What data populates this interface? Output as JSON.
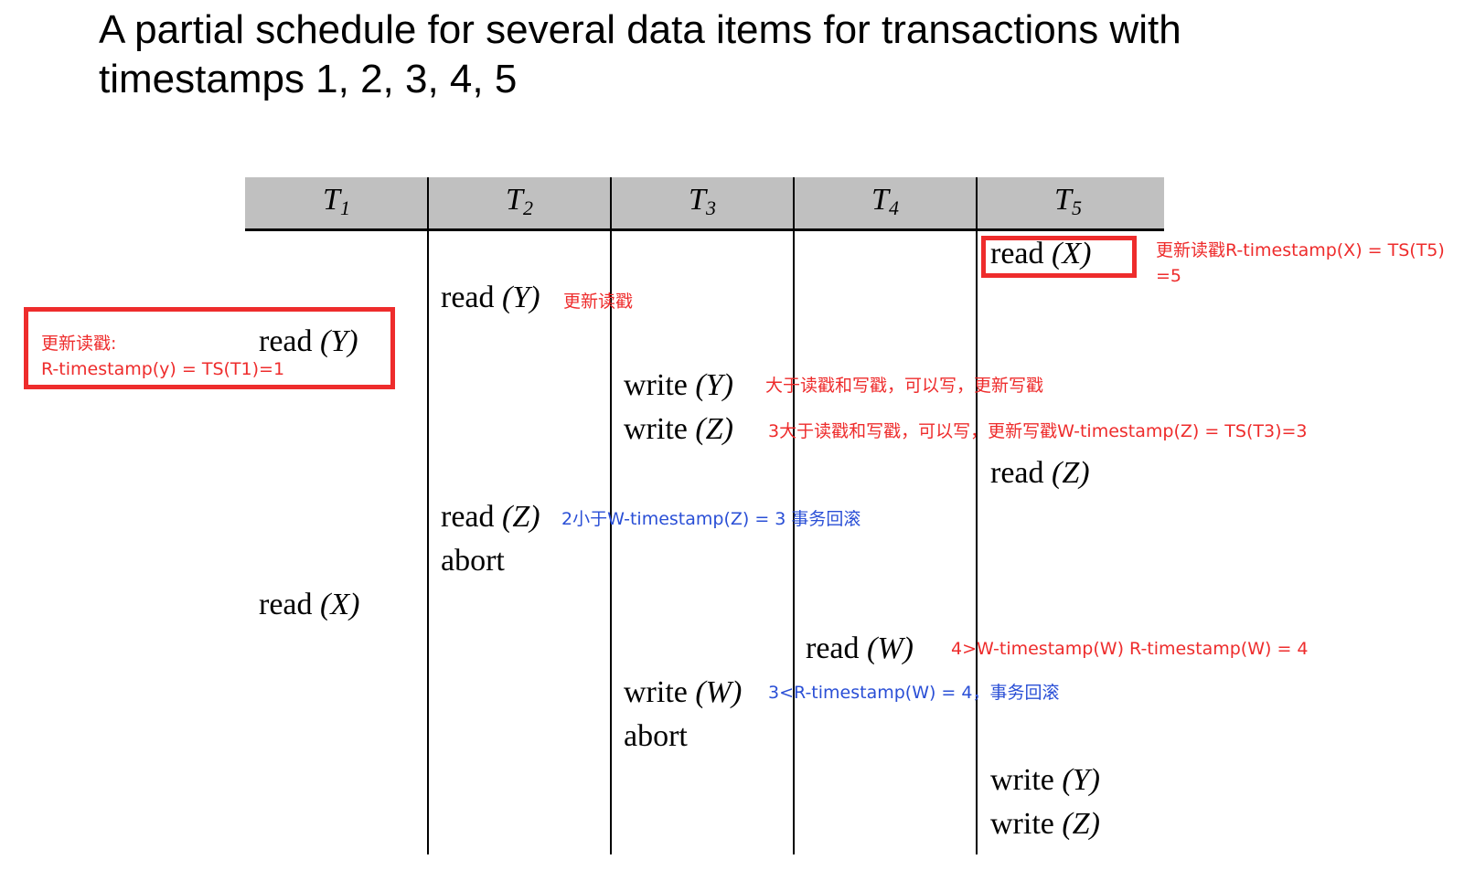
{
  "title": {
    "line1": "A partial schedule for several data items for transactions with",
    "line2": "timestamps 1, 2, 3, 4, 5"
  },
  "columns": [
    {
      "name": "T",
      "sub": "1"
    },
    {
      "name": "T",
      "sub": "2"
    },
    {
      "name": "T",
      "sub": "3"
    },
    {
      "name": "T",
      "sub": "4"
    },
    {
      "name": "T",
      "sub": "5"
    }
  ],
  "operations": [
    {
      "id": "t5-read-x",
      "verb": "read",
      "var": "(X)"
    },
    {
      "id": "t2-read-y",
      "verb": "read",
      "var": "(Y)"
    },
    {
      "id": "t1-read-y",
      "verb": "read",
      "var": "(Y)"
    },
    {
      "id": "t3-write-y",
      "verb": "write",
      "var": "(Y)"
    },
    {
      "id": "t3-write-z",
      "verb": "write",
      "var": "(Z)"
    },
    {
      "id": "t5-read-z",
      "verb": "read",
      "var": "(Z)"
    },
    {
      "id": "t2-read-z",
      "verb": "read",
      "var": "(Z)"
    },
    {
      "id": "t2-abort",
      "verb": "abort",
      "var": ""
    },
    {
      "id": "t1-read-x",
      "verb": "read",
      "var": "(X)"
    },
    {
      "id": "t4-read-w",
      "verb": "read",
      "var": "(W)"
    },
    {
      "id": "t3-write-w",
      "verb": "write",
      "var": "(W)"
    },
    {
      "id": "t3-abort",
      "verb": "abort",
      "var": ""
    },
    {
      "id": "t5-write-y",
      "verb": "write",
      "var": "(Y)"
    },
    {
      "id": "t5-write-z",
      "verb": "write",
      "var": "(Z)"
    }
  ],
  "annotations": {
    "t5_read_x_line1": "更新读戳R-timestamp(X) = TS(T5)",
    "t5_read_x_line2": "=5",
    "t2_read_y": "更新读戳",
    "t1_read_y_line1": "更新读戳:",
    "t1_read_y_line2": "R-timestamp(y) = TS(T1)=1",
    "t3_write_y": "大于读戳和写戳，可以写，更新写戳",
    "t3_write_z": "3大于读戳和写戳，可以写，更新写戳W-timestamp(Z) = TS(T3)=3",
    "t2_read_z": "2小于W-timestamp(Z) = 3 事务回滚",
    "t4_read_w": "4>W-timestamp(W)  R-timestamp(W) = 4",
    "t3_write_w": "3<R-timestamp(W) = 4，事务回滚"
  },
  "colors": {
    "annotation_red": "#ee2c2c",
    "annotation_blue": "#2a4fd6",
    "header_gray": "#c0c0c0"
  }
}
